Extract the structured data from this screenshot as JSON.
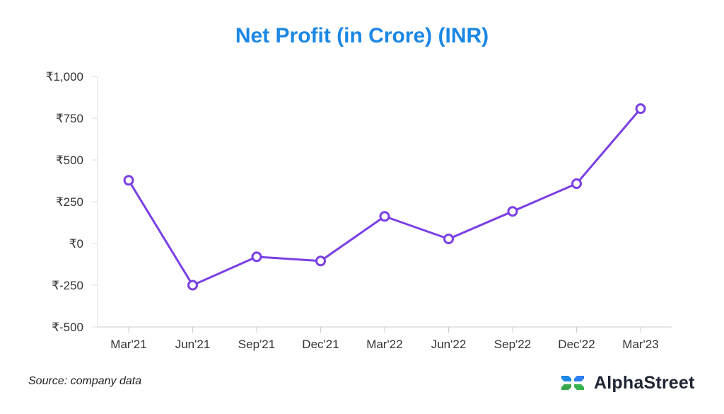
{
  "chart_data": {
    "type": "line",
    "title": "Net Profit (in Crore) (INR)",
    "categories": [
      "Mar'21",
      "Jun'21",
      "Sep'21",
      "Dec'21",
      "Mar'22",
      "Jun'22",
      "Sep'22",
      "Dec'22",
      "Mar'23"
    ],
    "series": [
      {
        "values": [
          378,
          -250,
          -80,
          -105,
          162,
          27,
          192,
          358,
          807
        ]
      }
    ],
    "y_ticks": [
      1000,
      750,
      500,
      250,
      0,
      -250,
      -500
    ],
    "y_tick_labels": [
      "₹1,000",
      "₹750",
      "₹500",
      "₹250",
      "₹0",
      "₹-250",
      "₹-500"
    ],
    "ylim": [
      -500,
      1000
    ],
    "grid": false,
    "line_color": "#7b3fe4",
    "title_color": "#1a87e5"
  },
  "footer": {
    "source": "Source: company data",
    "brand": "AlphaStreet",
    "brand_icon": "alphastreet-logo-icon"
  }
}
